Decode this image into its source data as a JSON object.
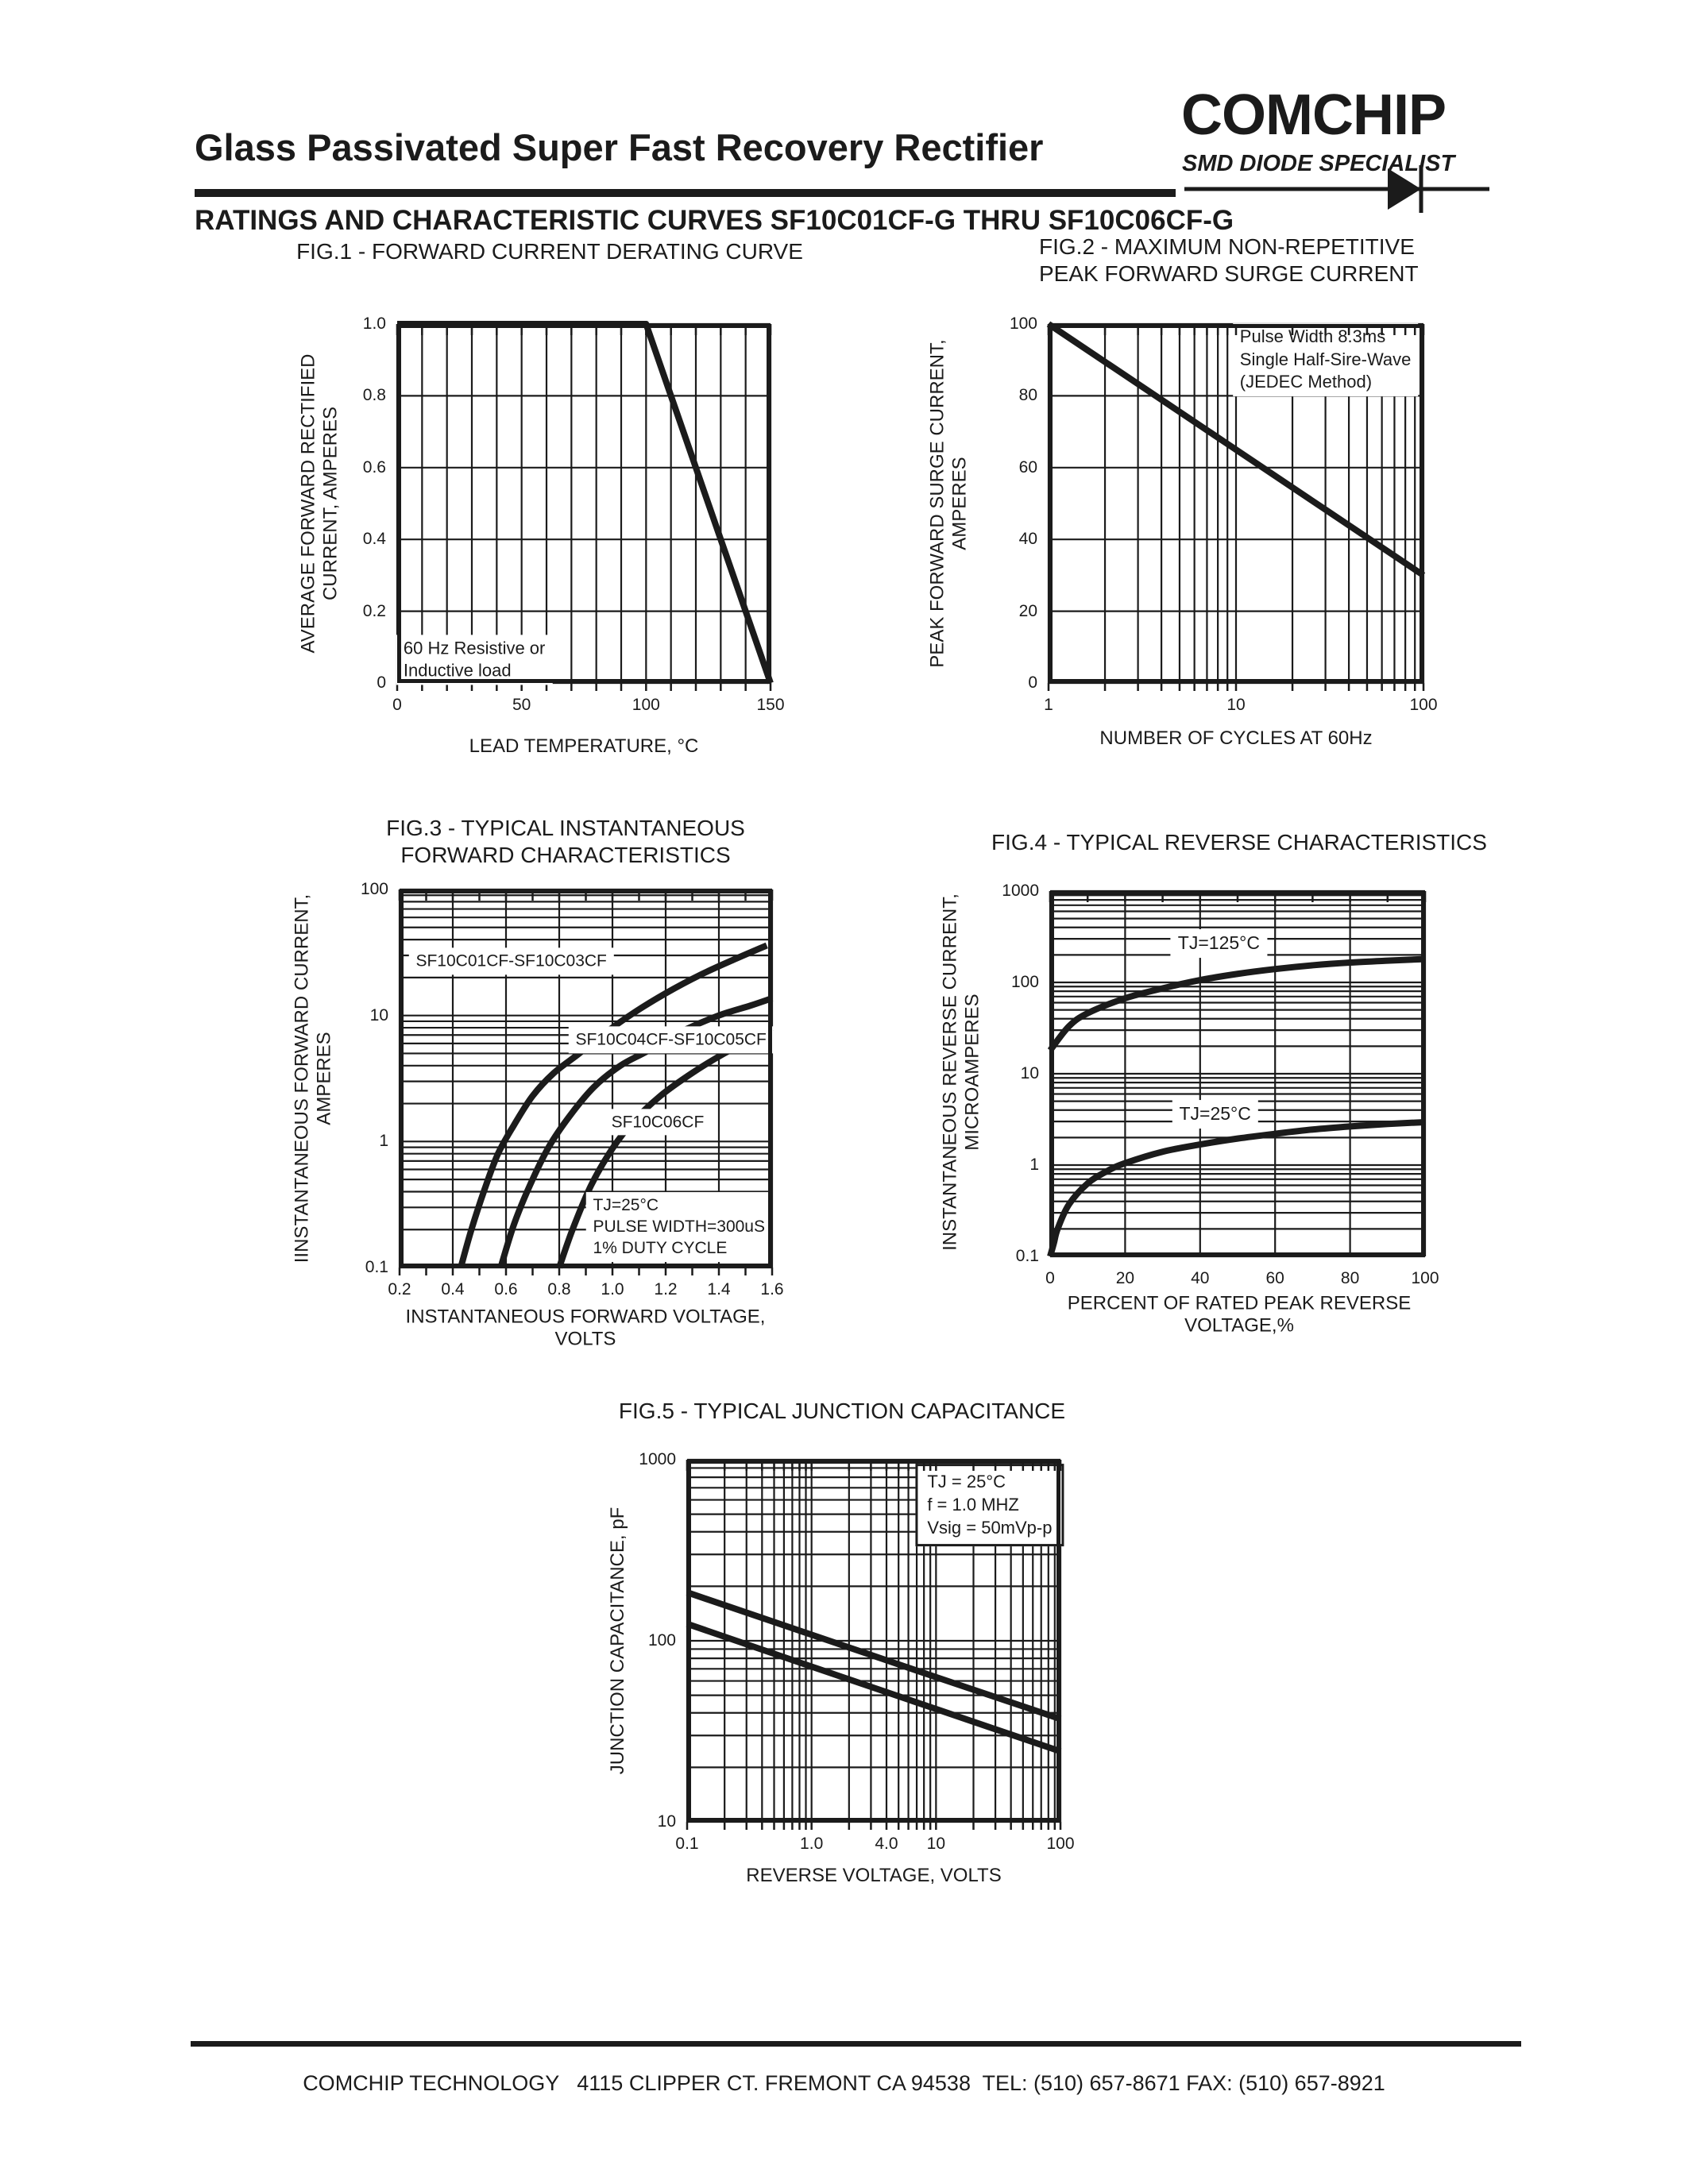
{
  "header": {
    "title": "Glass Passivated Super Fast Recovery Rectifier",
    "brand": "COMCHIP",
    "tagline": "SMD DIODE SPECIALIST",
    "subtitle": "RATINGS AND CHARACTERISTIC CURVES SF10C01CF-G THRU SF10C06CF-G"
  },
  "footer": {
    "text": "COMCHIP TECHNOLOGY   4115 CLIPPER CT. FREMONT CA 94538  TEL: (510) 657-8671 FAX: (510) 657-8921"
  },
  "colors": {
    "ink": "#1b1b1b",
    "paper": "#ffffff"
  },
  "chart_data": [
    {
      "id": "fig1",
      "type": "line",
      "title": "FIG.1 - FORWARD CURRENT DERATING CURVE",
      "xlabel": "LEAD TEMPERATURE, °C",
      "ylabel": "AVERAGE FORWARD RECTIFIED\nCURRENT, AMPERES",
      "xscale": "linear",
      "xlim": [
        0,
        150
      ],
      "xgrid_step": 10,
      "yscale": "linear",
      "ylim": [
        0,
        1.0
      ],
      "ygrid_step": 0.2,
      "grid": true,
      "legend": "none",
      "xticks": [
        [
          0,
          "0"
        ],
        [
          50,
          "50"
        ],
        [
          100,
          "100"
        ],
        [
          150,
          "150"
        ]
      ],
      "yticks": [
        [
          1,
          "1.0"
        ],
        [
          0.8,
          "0.8"
        ],
        [
          0.6,
          "0.6"
        ],
        [
          0.4,
          "0.4"
        ],
        [
          0.2,
          "0.2"
        ],
        [
          0,
          "0"
        ]
      ],
      "ticks_out_bottom": true,
      "ticks_in_top": true,
      "series": [
        {
          "name": "average forward rectified current",
          "smooth": false,
          "points": [
            [
              0,
              1.0
            ],
            [
              100,
              1.0
            ],
            [
              150,
              0
            ]
          ]
        }
      ],
      "annotations": [
        {
          "x": 31,
          "y": 0.065,
          "lines": [
            "60 Hz Resistive or",
            "Inductive load"
          ],
          "align": "left",
          "border": false,
          "fs": 22
        }
      ]
    },
    {
      "id": "fig2",
      "type": "line",
      "title": "FIG.2 - MAXIMUM NON-REPETITIVE\nPEAK FORWARD SURGE CURRENT",
      "xlabel": "NUMBER OF CYCLES AT 60Hz",
      "ylabel": "PEAK FORWARD SURGE CURRENT,\nAMPERES",
      "xscale": "log",
      "xlim": [
        1,
        100
      ],
      "yscale": "linear",
      "ylim": [
        0,
        100
      ],
      "ygrid_step": 20,
      "grid": true,
      "legend": "none",
      "xticks": [
        [
          1,
          "1"
        ],
        [
          10,
          "10"
        ],
        [
          100,
          "100"
        ]
      ],
      "yticks": [
        [
          100,
          "100"
        ],
        [
          80,
          "80"
        ],
        [
          60,
          "60"
        ],
        [
          40,
          "40"
        ],
        [
          20,
          "20"
        ],
        [
          0,
          "0"
        ]
      ],
      "ticks_out_bottom": true,
      "ticks_in_top": true,
      "series": [
        {
          "name": "peak forward surge current vs cycles",
          "smooth": false,
          "points": [
            [
              1,
              100
            ],
            [
              10,
              65
            ],
            [
              100,
              30
            ]
          ]
        }
      ],
      "annotations": [
        {
          "x": 30,
          "y": 90,
          "lines": [
            "Pulse Width 8.3ms",
            "Single Half-Sire-Wave",
            "(JEDEC Method)"
          ],
          "align": "left",
          "border": false,
          "fs": 22
        }
      ]
    },
    {
      "id": "fig3",
      "type": "line",
      "title": "FIG.3 - TYPICAL INSTANTANEOUS\nFORWARD CHARACTERISTICS",
      "xlabel": "INSTANTANEOUS FORWARD VOLTAGE,\nVOLTS",
      "ylabel": "IINSTANTANEOUS FORWARD CURRENT,\nAMPERES",
      "xscale": "linear",
      "xlim": [
        0.2,
        1.6
      ],
      "xgrid_step": 0.2,
      "xtick_minor_step": 0.1,
      "yscale": "log",
      "ylim": [
        0.1,
        100
      ],
      "grid": true,
      "legend": "none",
      "xticks": [
        [
          0.2,
          "0.2"
        ],
        [
          0.4,
          "0.4"
        ],
        [
          0.6,
          "0.6"
        ],
        [
          0.8,
          "0.8"
        ],
        [
          1.0,
          "1.0"
        ],
        [
          1.2,
          "1.2"
        ],
        [
          1.4,
          "1.4"
        ],
        [
          1.6,
          "1.6"
        ]
      ],
      "yticks": [
        [
          100,
          "100"
        ],
        [
          10,
          "10"
        ],
        [
          1,
          "1"
        ],
        [
          0.1,
          "0.1"
        ]
      ],
      "ticks_out_bottom": true,
      "ticks_in_top": true,
      "series": [
        {
          "name": "SF10C01CF-SF10C03CF",
          "smooth": true,
          "points": [
            [
              0.43,
              0.1
            ],
            [
              0.47,
              0.2
            ],
            [
              0.52,
              0.42
            ],
            [
              0.57,
              0.8
            ],
            [
              0.63,
              1.35
            ],
            [
              0.7,
              2.3
            ],
            [
              0.78,
              3.5
            ],
            [
              0.87,
              4.9
            ],
            [
              0.97,
              7.2
            ],
            [
              1.08,
              10.5
            ],
            [
              1.2,
              15
            ],
            [
              1.33,
              21
            ],
            [
              1.46,
              28
            ],
            [
              1.58,
              36
            ]
          ]
        },
        {
          "name": "SF10C04CF-SF10C05CF",
          "smooth": true,
          "points": [
            [
              0.58,
              0.1
            ],
            [
              0.63,
              0.22
            ],
            [
              0.69,
              0.45
            ],
            [
              0.76,
              0.9
            ],
            [
              0.84,
              1.6
            ],
            [
              0.93,
              2.7
            ],
            [
              1.03,
              4.0
            ],
            [
              1.13,
              5.2
            ],
            [
              1.25,
              7.3
            ],
            [
              1.4,
              10
            ],
            [
              1.52,
              12
            ],
            [
              1.6,
              13.7
            ]
          ]
        },
        {
          "name": "SF10C06CF",
          "smooth": true,
          "points": [
            [
              0.8,
              0.1
            ],
            [
              0.85,
              0.2
            ],
            [
              0.92,
              0.45
            ],
            [
              1.0,
              0.88
            ],
            [
              1.08,
              1.45
            ],
            [
              1.18,
              2.3
            ],
            [
              1.3,
              3.5
            ],
            [
              1.42,
              5.0
            ],
            [
              1.52,
              6.4
            ],
            [
              1.6,
              8.0
            ]
          ]
        }
      ],
      "annotations": [
        {
          "x": 0.62,
          "y": 27,
          "lines": [
            "SF10C01CF-SF10C03CF"
          ],
          "fs": 21
        },
        {
          "x": 1.22,
          "y": 6.4,
          "lines": [
            "SF10C04CF-SF10C05CF"
          ],
          "fs": 21
        },
        {
          "x": 1.17,
          "y": 1.42,
          "lines": [
            "SF10C06CF"
          ],
          "fs": 21
        },
        {
          "x": 1.25,
          "y": 0.21,
          "lines": [
            "TJ=25°C",
            "PULSE WIDTH=300uS",
            "1% DUTY CYCLE"
          ],
          "align": "left",
          "fs": 21
        }
      ]
    },
    {
      "id": "fig4",
      "type": "line",
      "title": "FIG.4 - TYPICAL REVERSE CHARACTERISTICS",
      "xlabel": "PERCENT OF RATED PEAK REVERSE VOLTAGE,%",
      "ylabel": "INSTANTANEOUS REVERSE CURRENT,\nMICROAMPERES",
      "xscale": "linear",
      "xlim": [
        0,
        100
      ],
      "xgrid_step": 20,
      "xtick_minor_step": 10,
      "yscale": "log",
      "ylim": [
        0.1,
        1000
      ],
      "grid": true,
      "legend": "none",
      "xticks": [
        [
          0,
          "0"
        ],
        [
          20,
          "20"
        ],
        [
          40,
          "40"
        ],
        [
          60,
          "60"
        ],
        [
          80,
          "80"
        ],
        [
          100,
          "100"
        ]
      ],
      "yticks": [
        [
          1000,
          "1000"
        ],
        [
          100,
          "100"
        ],
        [
          10,
          "10"
        ],
        [
          1,
          "1"
        ],
        [
          0.1,
          "0.1"
        ]
      ],
      "ticks_out_bottom": false,
      "ticks_in_top": true,
      "series": [
        {
          "name": "TJ=125°C",
          "smooth": true,
          "points": [
            [
              0,
              18
            ],
            [
              5,
              33
            ],
            [
              10,
              46
            ],
            [
              20,
              67
            ],
            [
              30,
              86
            ],
            [
              40,
              106
            ],
            [
              50,
              124
            ],
            [
              60,
              140
            ],
            [
              70,
              154
            ],
            [
              80,
              165
            ],
            [
              90,
              173
            ],
            [
              100,
              180
            ]
          ]
        },
        {
          "name": "TJ=25°C",
          "smooth": true,
          "points": [
            [
              0,
              0.1
            ],
            [
              1,
              0.14
            ],
            [
              2,
              0.2
            ],
            [
              5,
              0.37
            ],
            [
              10,
              0.63
            ],
            [
              15,
              0.85
            ],
            [
              20,
              1.05
            ],
            [
              30,
              1.4
            ],
            [
              40,
              1.68
            ],
            [
              50,
              1.95
            ],
            [
              60,
              2.2
            ],
            [
              70,
              2.45
            ],
            [
              80,
              2.65
            ],
            [
              90,
              2.82
            ],
            [
              100,
              2.95
            ]
          ]
        }
      ],
      "annotations": [
        {
          "x": 45,
          "y": 265,
          "lines": [
            "TJ=125°C"
          ],
          "fs": 23
        },
        {
          "x": 44,
          "y": 3.6,
          "lines": [
            "TJ=25°C"
          ],
          "fs": 23
        }
      ]
    },
    {
      "id": "fig5",
      "type": "line",
      "title": "FIG.5 - TYPICAL JUNCTION CAPACITANCE",
      "xlabel": "REVERSE VOLTAGE, VOLTS",
      "ylabel": "JUNCTION CAPACITANCE, pF",
      "xscale": "log",
      "xlim": [
        0.1,
        100
      ],
      "yscale": "log",
      "ylim": [
        10,
        1000
      ],
      "grid": true,
      "legend": "none",
      "xticks": [
        [
          0.1,
          "0.1"
        ],
        [
          1,
          "1.0"
        ],
        [
          4,
          "4.0"
        ],
        [
          10,
          "10"
        ],
        [
          100,
          "100"
        ]
      ],
      "yticks": [
        [
          1000,
          "1000"
        ],
        [
          100,
          "100"
        ],
        [
          10,
          "10"
        ]
      ],
      "ticks_out_bottom": true,
      "ticks_in_top": true,
      "series": [
        {
          "name": "junction capacitance (upper)",
          "smooth": false,
          "points": [
            [
              0.1,
              185
            ],
            [
              1,
              108
            ],
            [
              10,
              63
            ],
            [
              100,
              37
            ]
          ]
        },
        {
          "name": "junction capacitance (lower)",
          "smooth": false,
          "points": [
            [
              0.1,
              124
            ],
            [
              1,
              72
            ],
            [
              10,
              42
            ],
            [
              100,
              24.5
            ]
          ]
        }
      ],
      "annotations": [
        {
          "x": 27,
          "y": 560,
          "lines": [
            "TJ = 25°C",
            "f = 1.0 MHZ",
            "Vsig = 50mVp-p"
          ],
          "align": "left",
          "border": true,
          "fs": 22
        }
      ]
    }
  ]
}
